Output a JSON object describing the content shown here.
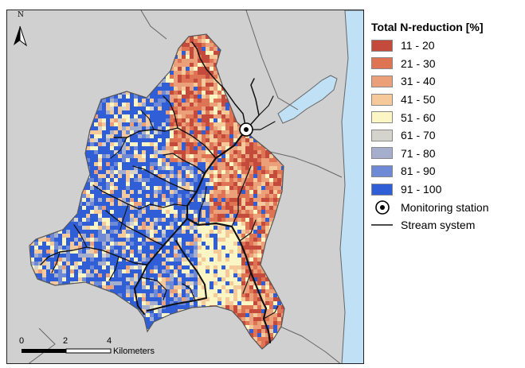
{
  "legend": {
    "title": "Total N-reduction [%]",
    "classes": [
      {
        "label": "11 - 20",
        "color": "#c44a3c"
      },
      {
        "label": "21 - 30",
        "color": "#df7455"
      },
      {
        "label": "31 - 40",
        "color": "#eba07a"
      },
      {
        "label": "41 - 50",
        "color": "#f6c99a"
      },
      {
        "label": "51 - 60",
        "color": "#fcf6c4"
      },
      {
        "label": "61 - 70",
        "color": "#d4d4cc"
      },
      {
        "label": "71 - 80",
        "color": "#a5afcd"
      },
      {
        "label": "81 - 90",
        "color": "#6e8ad6"
      },
      {
        "label": "91 - 100",
        "color": "#2f5ed6"
      }
    ],
    "monitoring_label": "Monitoring station",
    "stream_label": "Stream system"
  },
  "map": {
    "north_label": "N",
    "scale_ticks": [
      "0",
      "2",
      "4"
    ],
    "scale_unit": "Kilometers",
    "colors": {
      "land": "#d0d0d0",
      "water": "#bfe0f5",
      "stream": "#111111",
      "coast": "#666666"
    }
  }
}
